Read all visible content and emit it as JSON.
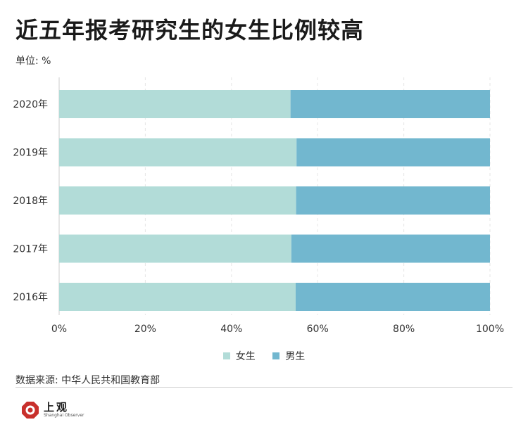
{
  "title": "近五年报考研究生的女生比例较高",
  "unit": "单位: %",
  "source": "数据来源: 中华人民共和国教育部",
  "logo": {
    "cn": "上观",
    "en": "Shanghai Observer",
    "icon": "shanghai-observer-logo-icon"
  },
  "colors": {
    "female": "#b2dcd8",
    "male": "#72b7cf",
    "grid": "#e6e6e6",
    "axis": "#cccccc"
  },
  "chart_data": {
    "type": "bar",
    "orientation": "horizontal",
    "stacked": true,
    "categories": [
      "2020年",
      "2019年",
      "2018年",
      "2017年",
      "2016年"
    ],
    "series": [
      {
        "name": "女生",
        "values": [
          53.7,
          55.1,
          55.0,
          53.9,
          54.9
        ]
      },
      {
        "name": "男生",
        "values": [
          46.3,
          44.9,
          45.0,
          46.1,
          45.1
        ]
      }
    ],
    "xlim": [
      0,
      100
    ],
    "xticks": [
      "0%",
      "20%",
      "40%",
      "60%",
      "80%",
      "100%"
    ],
    "grid": true,
    "legend": "bottom-center"
  }
}
